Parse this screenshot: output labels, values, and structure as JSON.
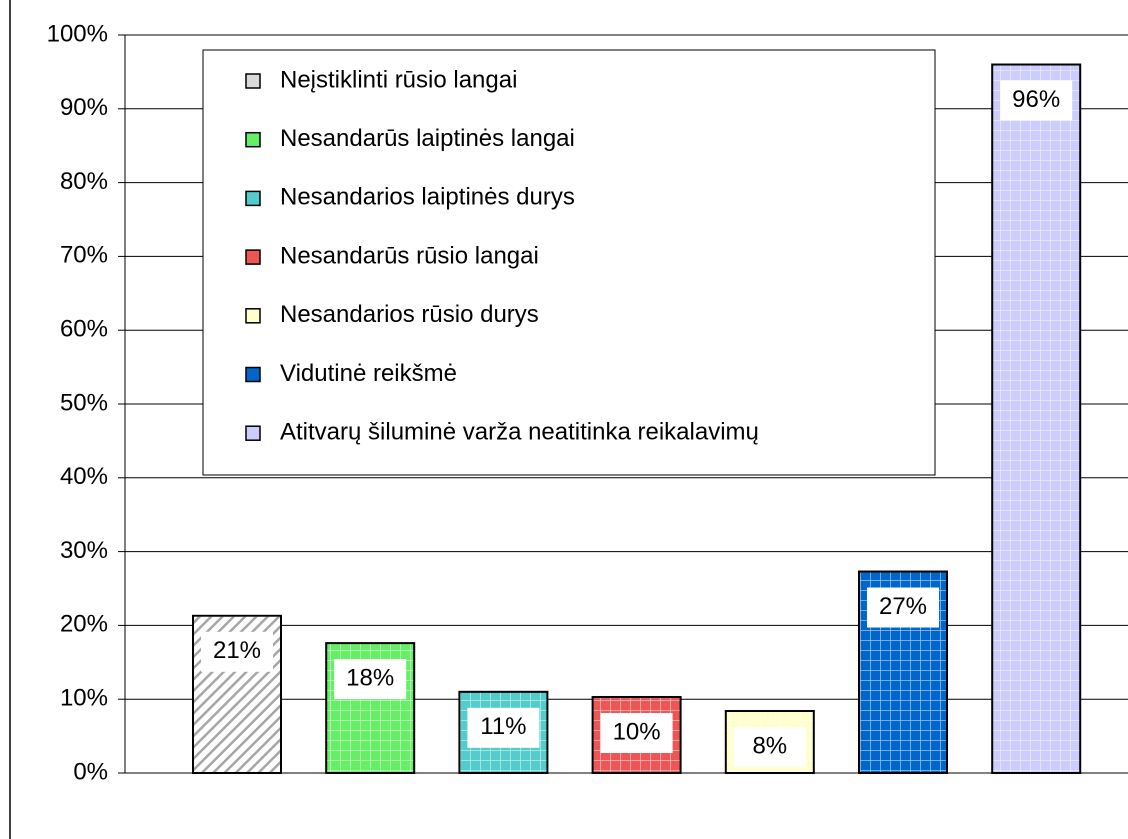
{
  "chart_data": {
    "type": "bar",
    "series": [
      {
        "name": "Neįstiklinti rūsio langai",
        "color": "#d9d9d9",
        "values": [
          21.3
        ],
        "value_labels": [
          "21%"
        ]
      },
      {
        "name": "Nesandarūs laiptinės langai",
        "color": "#66ee66",
        "values": [
          17.6
        ],
        "value_labels": [
          "18%"
        ]
      },
      {
        "name": "Nesandarios laiptinės durys",
        "color": "#55cccc",
        "values": [
          11
        ],
        "value_labels": [
          "11%"
        ]
      },
      {
        "name": "Nesandarūs rūsio langai",
        "color": "#ee5555",
        "values": [
          10.3
        ],
        "value_labels": [
          "10%"
        ]
      },
      {
        "name": "Nesandarios rūsio durys",
        "color": "#ffffcc",
        "values": [
          8.4
        ],
        "value_labels": [
          "8%"
        ]
      },
      {
        "name": "Vidutinė reikšmė",
        "color": "#0066cc",
        "values": [
          27.3
        ],
        "value_labels": [
          "27%"
        ]
      },
      {
        "name": "Atitvarų šiluminė varža neatitinka reikalavimų",
        "color": "#ccccff",
        "values": [
          96
        ],
        "value_labels": [
          "96%"
        ]
      }
    ],
    "ylim": [
      0,
      100
    ],
    "yticks": [
      {
        "value": 0,
        "label": "0%"
      },
      {
        "value": 10,
        "label": "10%"
      },
      {
        "value": 20,
        "label": "20%"
      },
      {
        "value": 30,
        "label": "30%"
      },
      {
        "value": 40,
        "label": "40%"
      },
      {
        "value": 50,
        "label": "50%"
      },
      {
        "value": 60,
        "label": "60%"
      },
      {
        "value": 70,
        "label": "70%"
      },
      {
        "value": 80,
        "label": "80%"
      },
      {
        "value": 90,
        "label": "90%"
      },
      {
        "value": 100,
        "label": "100%"
      }
    ],
    "grid": true
  }
}
